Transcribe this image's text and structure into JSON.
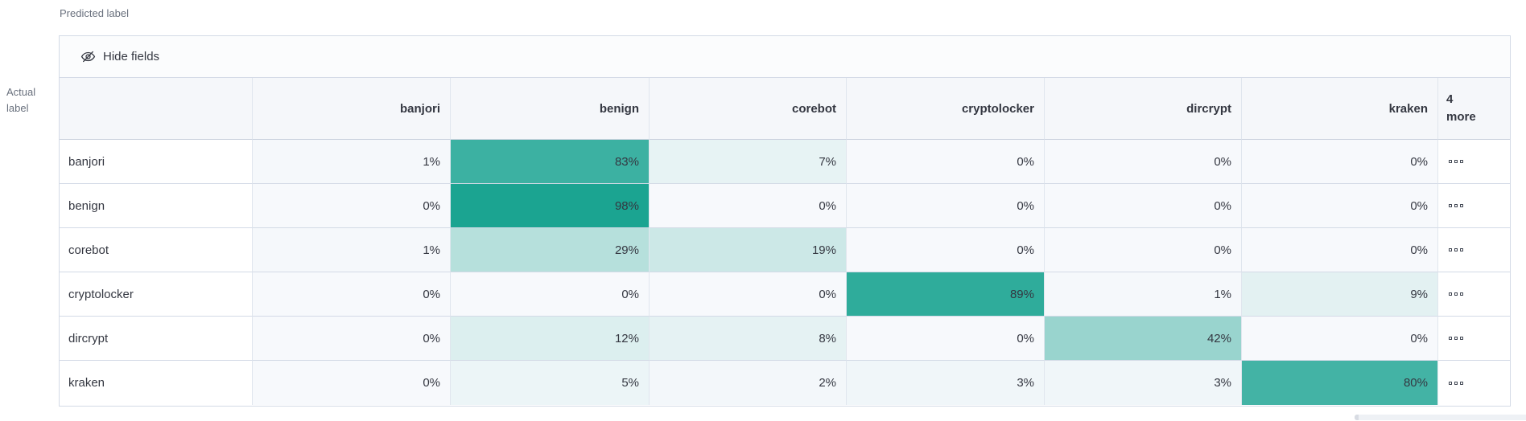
{
  "labels": {
    "predicted": "Predicted label",
    "actual_lines": [
      "Actual",
      "label"
    ]
  },
  "toolbar": {
    "hide_fields": "Hide fields"
  },
  "icons": {
    "hide_fields": "eye-closed-icon",
    "more_cell": "boxes-horizontal-icon"
  },
  "colors": {
    "heat_base": "#16A28F",
    "zero_bg": "#F7F9FC",
    "header_bg": "#F5F7FA",
    "outer_border": "#D3DAE6",
    "column_border": "#E0E6EE",
    "text": "#343741",
    "muted_text": "#69707D"
  },
  "chart_data": {
    "type": "heatmap",
    "columns": [
      "banjori",
      "benign",
      "corebot",
      "cryptolocker",
      "dircrypt",
      "kraken"
    ],
    "more_column_label": "4 more",
    "rows": [
      "banjori",
      "benign",
      "corebot",
      "cryptolocker",
      "dircrypt",
      "kraken"
    ],
    "values": [
      [
        1,
        83,
        7,
        0,
        0,
        0
      ],
      [
        0,
        98,
        0,
        0,
        0,
        0
      ],
      [
        1,
        29,
        19,
        0,
        0,
        0
      ],
      [
        0,
        0,
        0,
        89,
        1,
        9
      ],
      [
        0,
        12,
        8,
        0,
        42,
        0
      ],
      [
        0,
        5,
        2,
        3,
        3,
        80
      ]
    ],
    "cells": [
      [
        "1%",
        "83%",
        "7%",
        "0%",
        "0%",
        "0%"
      ],
      [
        "0%",
        "98%",
        "0%",
        "0%",
        "0%",
        "0%"
      ],
      [
        "1%",
        "29%",
        "19%",
        "0%",
        "0%",
        "0%"
      ],
      [
        "0%",
        "0%",
        "0%",
        "89%",
        "1%",
        "9%"
      ],
      [
        "0%",
        "12%",
        "8%",
        "0%",
        "42%",
        "0%"
      ],
      [
        "0%",
        "5%",
        "2%",
        "3%",
        "3%",
        "80%"
      ]
    ],
    "value_suffix": "%",
    "x_axis_title": "Predicted label",
    "y_axis_title": "Actual label"
  }
}
